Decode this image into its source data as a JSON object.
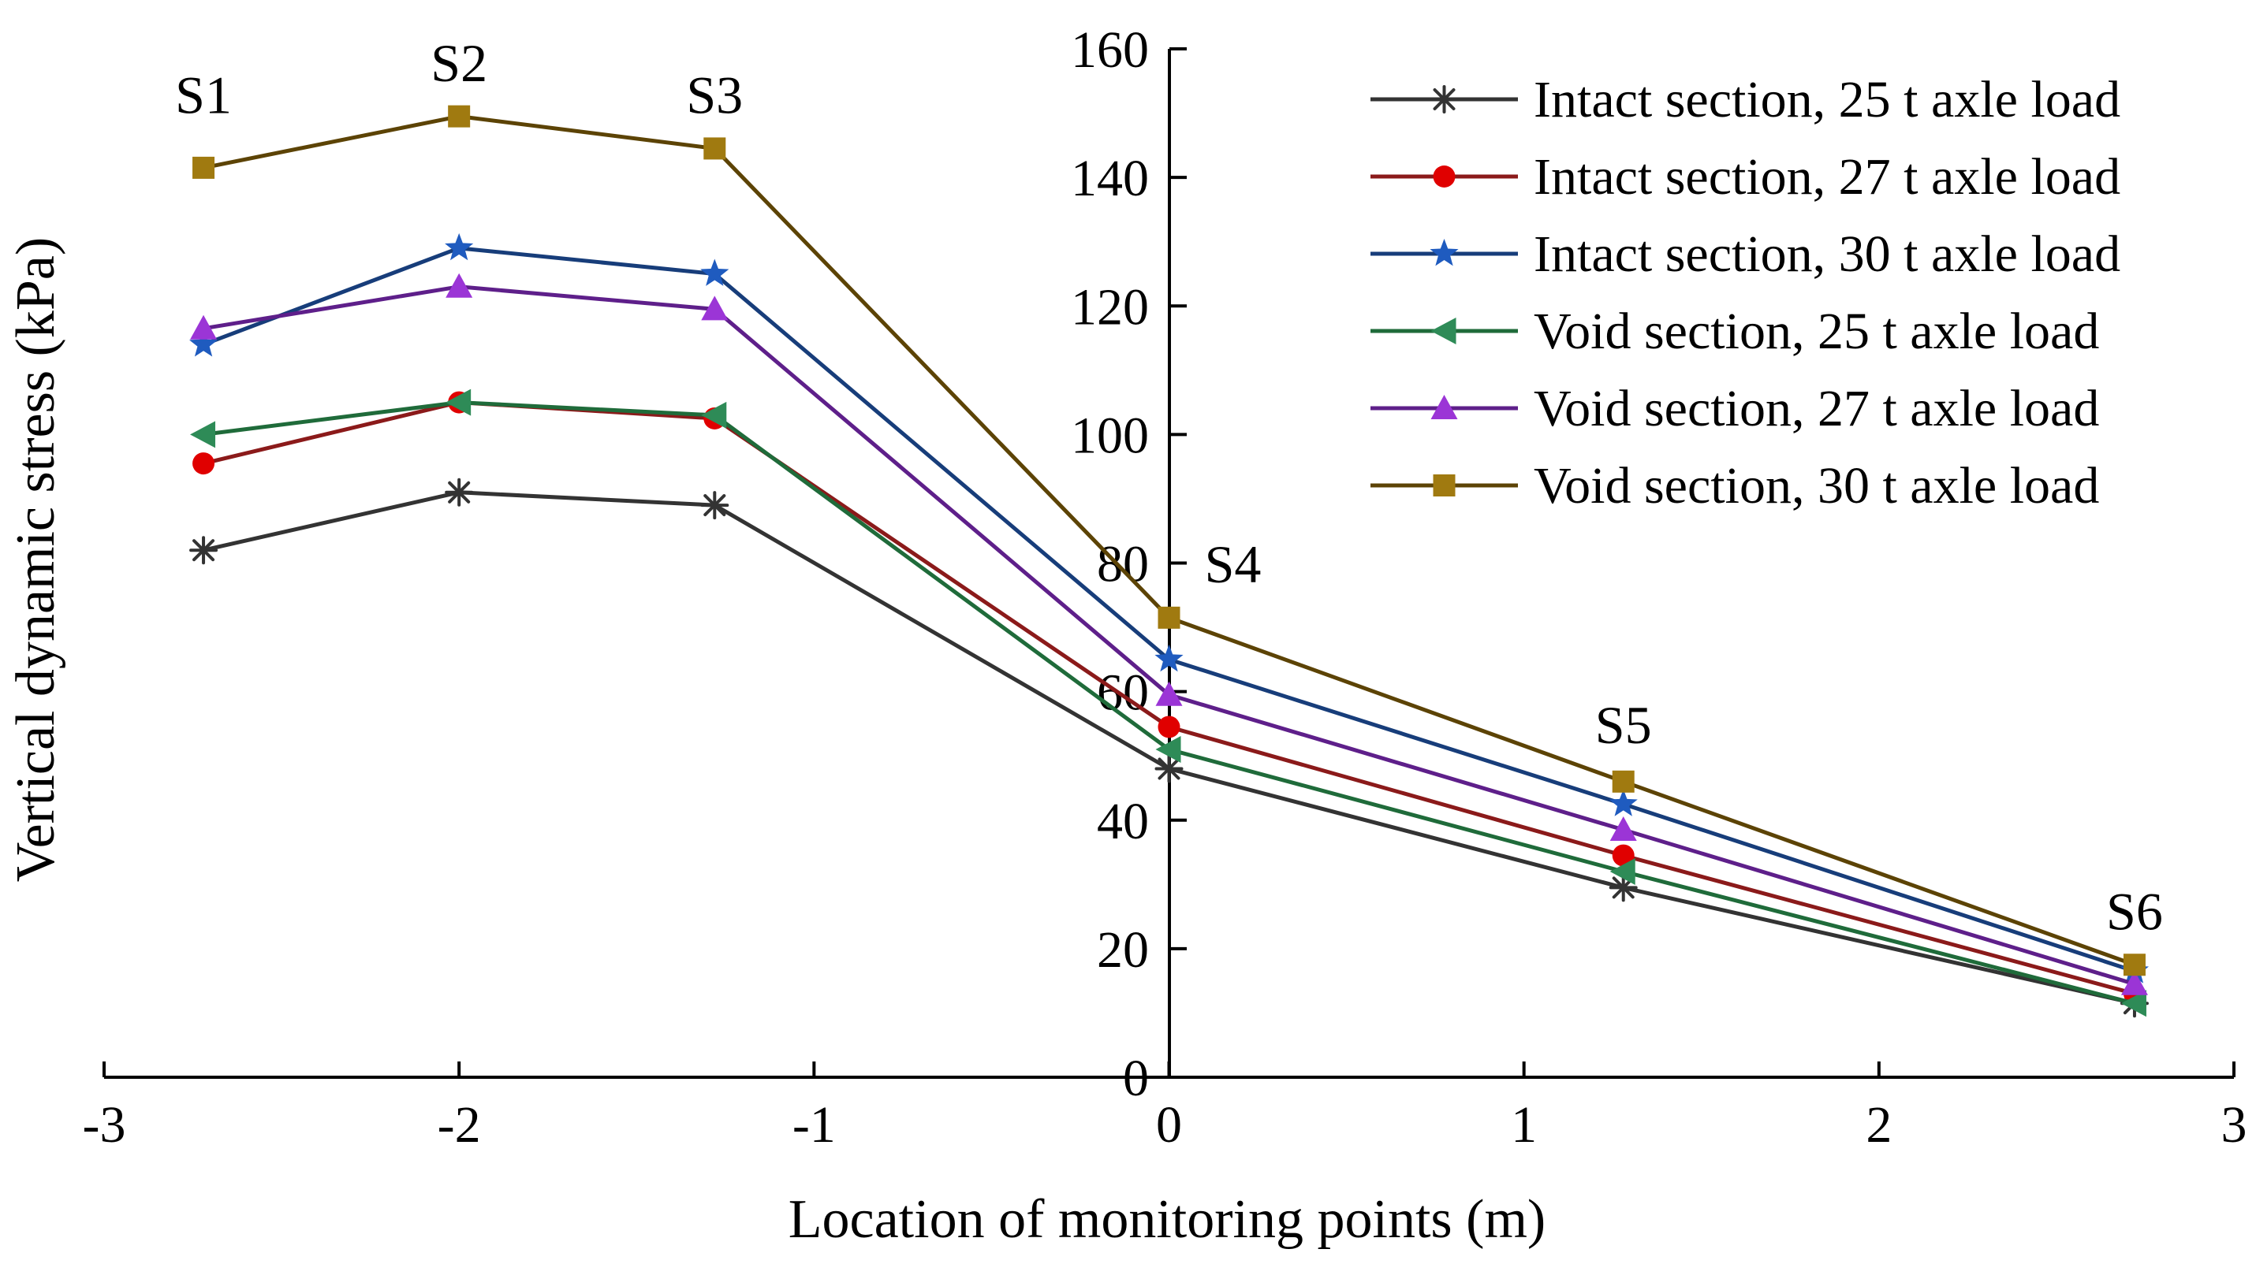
{
  "chart_data": {
    "type": "line",
    "xlabel": "Location of monitoring points (m)",
    "ylabel": "Vertical dynamic stress (kPa)",
    "xlim": [
      -3,
      3
    ],
    "ylim": [
      0,
      160
    ],
    "xticks": [
      -3,
      -2,
      -1,
      0,
      1,
      2,
      3
    ],
    "yticks": [
      0,
      20,
      40,
      60,
      80,
      100,
      120,
      140,
      160
    ],
    "xtick_labels": [
      "-3",
      "-2",
      "-1",
      "0",
      "1",
      "2",
      "3"
    ],
    "ytick_labels": [
      "0",
      "20",
      "40",
      "60",
      "80",
      "100",
      "120",
      "140",
      "160"
    ],
    "x": [
      -2.72,
      -2.0,
      -1.28,
      0.0,
      1.28,
      2.72
    ],
    "series": [
      {
        "name": "Intact section, 25 t axle load",
        "color": "#333333",
        "marker": "asterisk",
        "values": [
          82,
          91,
          89,
          48,
          29.5,
          11.5
        ]
      },
      {
        "name": "Intact section, 27 t axle load",
        "color": "#8B1A1A",
        "marker_color": "#E00000",
        "marker": "circle",
        "values": [
          95.5,
          105,
          102.5,
          54.5,
          34.5,
          13
        ]
      },
      {
        "name": "Intact section, 30 t axle load",
        "color": "#173D7A",
        "marker_color": "#1F5BBF",
        "marker": "star",
        "values": [
          114,
          129,
          125,
          65,
          42.5,
          16.5
        ]
      },
      {
        "name": "Void section, 25 t axle load",
        "color": "#1F6B3A",
        "marker_color": "#2E8B57",
        "marker": "triangle-left",
        "values": [
          100,
          105,
          103,
          51,
          32,
          11.5
        ]
      },
      {
        "name": "Void section, 27 t axle load",
        "color": "#5E1F8A",
        "marker_color": "#9B35D6",
        "marker": "triangle-up",
        "values": [
          116.5,
          123,
          119.5,
          59.5,
          38.5,
          14.5
        ]
      },
      {
        "name": "Void section, 30 t axle load",
        "color": "#5C4305",
        "marker_color": "#A07A10",
        "marker": "square",
        "values": [
          141.5,
          149.5,
          144.5,
          71.5,
          46,
          17.5
        ]
      }
    ],
    "annotations": [
      {
        "text": "S1",
        "x": -2.72,
        "y": 150
      },
      {
        "text": "S2",
        "x": -2.0,
        "y": 155
      },
      {
        "text": "S3",
        "x": -1.28,
        "y": 150
      },
      {
        "text": "S4",
        "x": 0.18,
        "y": 77
      },
      {
        "text": "S5",
        "x": 1.28,
        "y": 52
      },
      {
        "text": "S6",
        "x": 2.72,
        "y": 23
      }
    ],
    "legend_position": "top-right"
  }
}
